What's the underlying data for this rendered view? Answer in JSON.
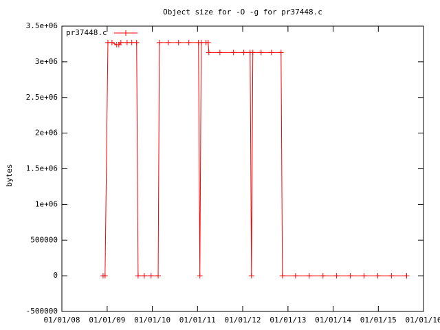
{
  "chart_data": {
    "type": "line",
    "title": "Object size for -O -g for pr37448.c",
    "y_label": "bytes",
    "x": [
      "2008-11-29",
      "2008-12-15",
      "2009-01-07",
      "2009-02-09",
      "2009-03-19",
      "2009-04-05",
      "2009-04-22",
      "2009-06-11",
      "2009-07-19",
      "2009-08-27",
      "2009-09-08",
      "2009-10-28",
      "2009-12-22",
      "2010-02-17",
      "2010-02-27",
      "2010-05-10",
      "2010-08-01",
      "2010-10-23",
      "2011-01-09",
      "2011-01-20",
      "2011-01-31",
      "2011-03-11",
      "2011-03-28",
      "2011-04-03",
      "2011-07-01",
      "2011-10-19",
      "2012-01-10",
      "2012-03-01",
      "2012-03-12",
      "2012-03-23",
      "2012-05-29",
      "2012-08-20",
      "2012-11-06",
      "2012-11-17",
      "2013-03-03",
      "2013-06-22",
      "2013-10-11",
      "2014-01-29",
      "2014-05-20",
      "2014-09-08",
      "2014-12-28",
      "2015-04-17",
      "2015-08-18"
    ],
    "series": [
      {
        "name": "pr37448.c",
        "color": "#ff0000",
        "values": [
          0,
          0,
          3270000,
          3270000,
          3240000,
          3240000,
          3270000,
          3270000,
          3270000,
          3270000,
          0,
          0,
          0,
          0,
          3270000,
          3270000,
          3270000,
          3270000,
          3270000,
          0,
          3270000,
          3270000,
          3270000,
          3130000,
          3130000,
          3130000,
          3130000,
          3130000,
          0,
          3130000,
          3130000,
          3130000,
          3130000,
          0,
          0,
          0,
          0,
          0,
          0,
          0,
          0,
          0,
          0
        ]
      }
    ],
    "xlim": [
      "2008-01-01",
      "2016-01-01"
    ],
    "xticks": [
      {
        "value": "2008-01-01",
        "label": "01/01/08"
      },
      {
        "value": "2009-01-01",
        "label": "01/01/09"
      },
      {
        "value": "2010-01-01",
        "label": "01/01/10"
      },
      {
        "value": "2011-01-01",
        "label": "01/01/11"
      },
      {
        "value": "2012-01-01",
        "label": "01/01/12"
      },
      {
        "value": "2013-01-01",
        "label": "01/01/13"
      },
      {
        "value": "2014-01-01",
        "label": "01/01/14"
      },
      {
        "value": "2015-01-01",
        "label": "01/01/15"
      },
      {
        "value": "2016-01-01",
        "label": "01/01/16"
      }
    ],
    "ylim": [
      -500000,
      3500000
    ],
    "yticks": [
      -500000,
      0,
      500000,
      {
        "value": 1000000,
        "label": "1e+06"
      },
      {
        "value": 1500000,
        "label": "1.5e+06"
      },
      {
        "value": 2000000,
        "label": "2e+06"
      },
      {
        "value": 2500000,
        "label": "2.5e+06"
      },
      {
        "value": 3000000,
        "label": "3e+06"
      },
      {
        "value": 3500000,
        "label": "3.5e+06"
      }
    ],
    "legend": "top-left"
  }
}
